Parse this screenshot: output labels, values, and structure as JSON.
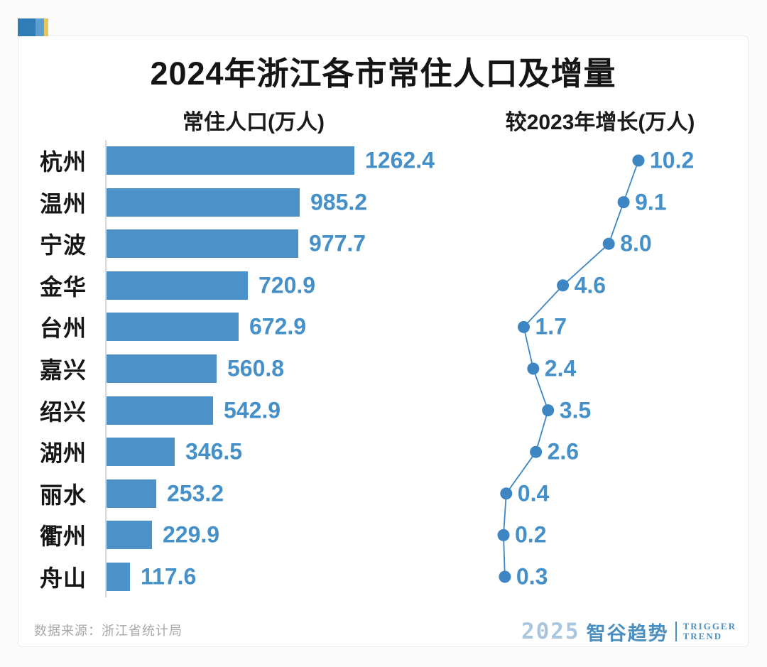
{
  "page": {
    "title": "2024年浙江各市常住人口及增量",
    "source_note": "数据来源：浙江省统计局",
    "brand": {
      "year": "2025",
      "name": "智谷趋势",
      "tagline_line1": "TRIGGER",
      "tagline_line2": "TREND"
    }
  },
  "chart_data": {
    "type": "bar",
    "title": "2024年浙江各市常住人口及增量",
    "orientation": "horizontal",
    "categories": [
      "杭州",
      "温州",
      "宁波",
      "金华",
      "台州",
      "嘉兴",
      "绍兴",
      "湖州",
      "丽水",
      "衢州",
      "舟山"
    ],
    "series": [
      {
        "name": "常住人口(万人)",
        "type": "bar",
        "values": [
          1262.4,
          985.2,
          977.7,
          720.9,
          672.9,
          560.8,
          542.9,
          346.5,
          253.2,
          229.9,
          117.6
        ]
      },
      {
        "name": "较2023年增长(万人)",
        "type": "line",
        "values": [
          10.2,
          9.1,
          8.0,
          4.6,
          1.7,
          2.4,
          3.5,
          2.6,
          0.4,
          0.2,
          0.3
        ]
      }
    ],
    "value_labels": "on",
    "grid": "off",
    "legend": "none",
    "colors": {
      "bar": "#4a92c9",
      "line": "#3e86c3",
      "dot": "#3e86c3",
      "value_text": "#4590c8",
      "category_text": "#161616",
      "logo_dark_blue": "#2f7cb6",
      "logo_light_blue": "#5b9fd0",
      "logo_yellow": "#e7c65c"
    }
  }
}
